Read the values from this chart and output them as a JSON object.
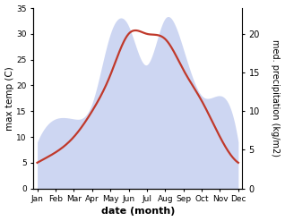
{
  "months": [
    "Jan",
    "Feb",
    "Mar",
    "Apr",
    "May",
    "Jun",
    "Jul",
    "Aug",
    "Sep",
    "Oct",
    "Nov",
    "Dec"
  ],
  "temp_max": [
    5,
    7,
    10,
    15,
    22,
    30,
    30,
    29,
    23,
    17,
    10,
    5
  ],
  "precip": [
    6,
    9,
    9,
    11,
    20,
    21,
    16,
    22,
    18,
    12,
    12,
    6
  ],
  "temp_color": "#c0392b",
  "precip_fill_color": "#c5cff0",
  "precip_fill_alpha": 0.85,
  "temp_ylim": [
    0,
    35
  ],
  "precip_ylim": [
    0,
    23.33
  ],
  "xlabel": "date (month)",
  "ylabel_left": "max temp (C)",
  "ylabel_right": "med. precipitation (kg/m2)",
  "bg_color": "#ffffff",
  "temp_linewidth": 1.6,
  "right_yticks": [
    0,
    5,
    10,
    15,
    20
  ],
  "left_yticks": [
    0,
    5,
    10,
    15,
    20,
    25,
    30,
    35
  ]
}
